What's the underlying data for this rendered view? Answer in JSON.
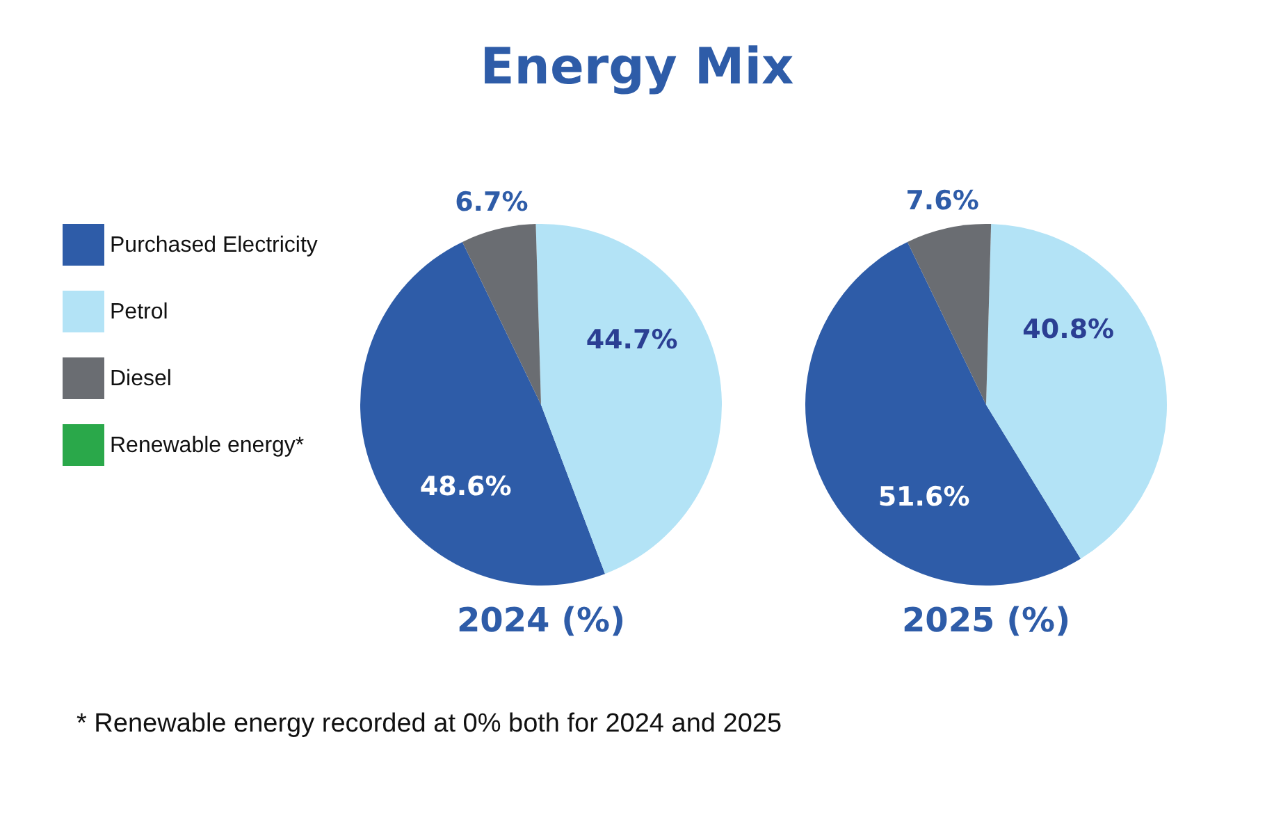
{
  "chart_data": {
    "type": "pie",
    "title": "Energy Mix",
    "categories": [
      "Purchased Electricity",
      "Petrol",
      "Diesel",
      "Renewable energy*"
    ],
    "colors": [
      "#2e5ca8",
      "#b3e3f6",
      "#6a6d72",
      "#2aa84a"
    ],
    "legend": "left",
    "series": [
      {
        "name": "2024 (%)",
        "values": [
          48.6,
          44.7,
          6.7,
          0
        ],
        "value_labels": [
          "48.6%",
          "44.7%",
          "6.7%",
          null
        ]
      },
      {
        "name": "2025 (%)",
        "values": [
          51.6,
          40.8,
          7.6,
          0
        ],
        "value_labels": [
          "51.6%",
          "40.8%",
          "7.6%",
          null
        ]
      }
    ],
    "annotations": [
      "* Renewable energy recorded at 0% both for 2024 and 2025"
    ]
  }
}
